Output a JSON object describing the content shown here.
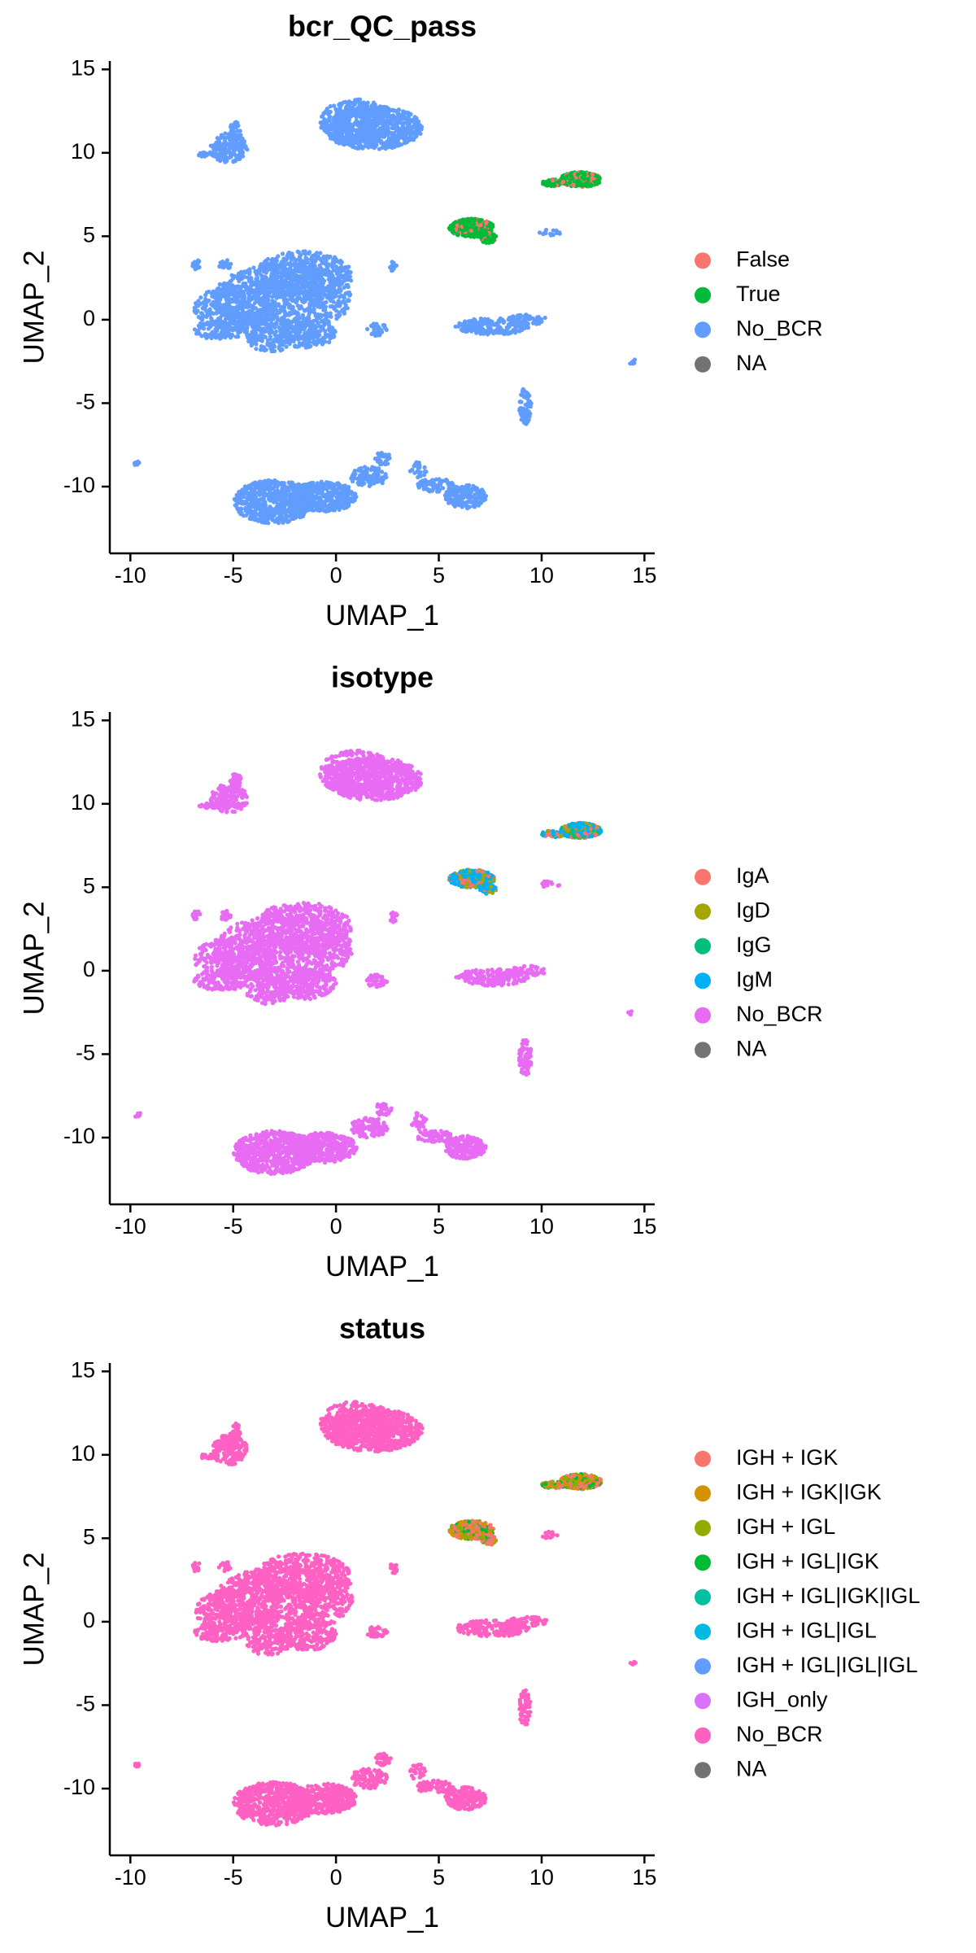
{
  "chart_data": [
    {
      "type": "scatter",
      "title": "bcr_QC_pass",
      "xlabel": "UMAP_1",
      "ylabel": "UMAP_2",
      "xlim": [
        -11,
        15.5
      ],
      "ylim": [
        -14,
        15.5
      ],
      "xticks": [
        -10,
        -5,
        0,
        5,
        10,
        15
      ],
      "yticks": [
        -10,
        -5,
        0,
        5,
        10,
        15
      ],
      "grid": false,
      "legend_position": "right",
      "legend": [
        {
          "label": "False",
          "color": "#F8766D"
        },
        {
          "label": "True",
          "color": "#00BA38"
        },
        {
          "label": "No_BCR",
          "color": "#619CFF"
        },
        {
          "label": "NA",
          "color": "#737373"
        }
      ],
      "background_color": "#619CFF",
      "accent": [
        {
          "region": "bcells_upper",
          "colors": [
            "#00BA38",
            "#00BA38",
            "#00BA38",
            "#F8766D"
          ]
        },
        {
          "region": "bcells_mid",
          "colors": [
            "#00BA38",
            "#00BA38",
            "#00BA38",
            "#F8766D"
          ]
        }
      ]
    },
    {
      "type": "scatter",
      "title": "isotype",
      "xlabel": "UMAP_1",
      "ylabel": "UMAP_2",
      "xlim": [
        -11,
        15.5
      ],
      "ylim": [
        -14,
        15.5
      ],
      "xticks": [
        -10,
        -5,
        0,
        5,
        10,
        15
      ],
      "yticks": [
        -10,
        -5,
        0,
        5,
        10,
        15
      ],
      "grid": false,
      "legend_position": "right",
      "legend": [
        {
          "label": "IgA",
          "color": "#F8766D"
        },
        {
          "label": "IgD",
          "color": "#A3A500"
        },
        {
          "label": "IgG",
          "color": "#00BF7D"
        },
        {
          "label": "IgM",
          "color": "#00B0F6"
        },
        {
          "label": "No_BCR",
          "color": "#E76BF3"
        },
        {
          "label": "NA",
          "color": "#737373"
        }
      ],
      "background_color": "#E76BF3",
      "accent": [
        {
          "region": "bcells_upper",
          "colors": [
            "#00B0F6",
            "#00B0F6",
            "#00B0F6",
            "#F8766D",
            "#A3A500",
            "#00BF7D"
          ]
        },
        {
          "region": "bcells_mid",
          "colors": [
            "#00B0F6",
            "#00B0F6",
            "#00B0F6",
            "#F8766D",
            "#A3A500"
          ]
        }
      ]
    },
    {
      "type": "scatter",
      "title": "status",
      "xlabel": "UMAP_1",
      "ylabel": "UMAP_2",
      "xlim": [
        -11,
        15.5
      ],
      "ylim": [
        -14,
        15.5
      ],
      "xticks": [
        -10,
        -5,
        0,
        5,
        10,
        15
      ],
      "yticks": [
        -10,
        -5,
        0,
        5,
        10,
        15
      ],
      "grid": false,
      "legend_position": "right",
      "legend": [
        {
          "label": "IGH + IGK",
          "color": "#F8766D"
        },
        {
          "label": "IGH + IGK|IGK",
          "color": "#D39200"
        },
        {
          "label": "IGH + IGL",
          "color": "#93AA00"
        },
        {
          "label": "IGH + IGL|IGK",
          "color": "#00BA38"
        },
        {
          "label": "IGH + IGL|IGK|IGL",
          "color": "#00C19F"
        },
        {
          "label": "IGH + IGL|IGL",
          "color": "#00B9E3"
        },
        {
          "label": "IGH + IGL|IGL|IGL",
          "color": "#619CFF"
        },
        {
          "label": "IGH_only",
          "color": "#DB72FB"
        },
        {
          "label": "No_BCR",
          "color": "#FF61C3"
        },
        {
          "label": "NA",
          "color": "#737373"
        }
      ],
      "background_color": "#FF61C3",
      "accent": [
        {
          "region": "bcells_upper",
          "colors": [
            "#F8766D",
            "#F8766D",
            "#93AA00",
            "#00BA38",
            "#D39200"
          ]
        },
        {
          "region": "bcells_mid",
          "colors": [
            "#F8766D",
            "#F8766D",
            "#93AA00",
            "#00BA38",
            "#D39200"
          ]
        }
      ]
    }
  ]
}
